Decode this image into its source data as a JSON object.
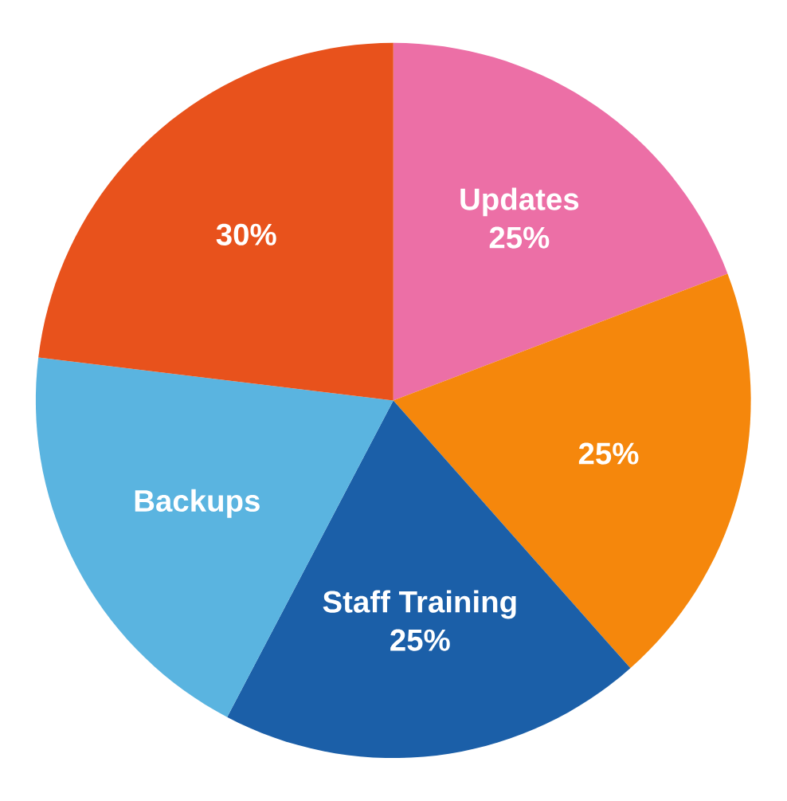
{
  "chart_data": {
    "type": "pie",
    "categories": [
      "Updates",
      null,
      "Staff Training",
      "Backups",
      null
    ],
    "values": [
      25,
      25,
      25,
      25,
      30
    ],
    "value_labels": [
      "25%",
      "25%",
      "25%",
      null,
      "30%"
    ],
    "colors": [
      "#ec6fa6",
      "#f5870c",
      "#1b5fa8",
      "#5ab4e0",
      "#e8521c"
    ]
  }
}
